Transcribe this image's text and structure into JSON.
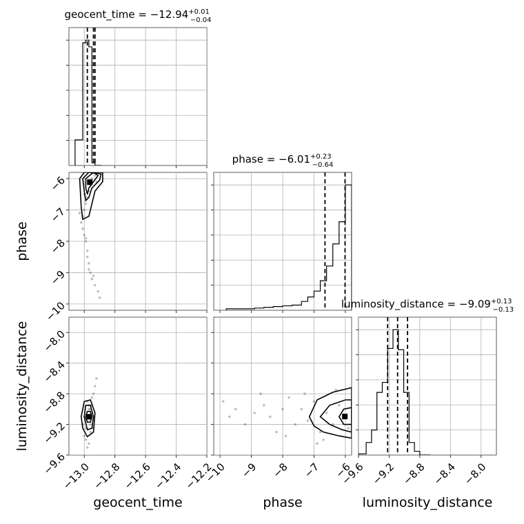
{
  "chart_data": {
    "type": "corner",
    "parameters": [
      "geocent_time",
      "phase",
      "luminosity_distance"
    ],
    "axes": {
      "geocent_time": {
        "label": "geocent_time",
        "range": [
          -13.1,
          -12.2
        ],
        "ticks": [
          -13.0,
          -12.8,
          -12.6,
          -12.4,
          -12.2
        ],
        "tick_labels": [
          "−13.0",
          "−12.8",
          "−12.6",
          "−12.4",
          "−12.2"
        ]
      },
      "phase": {
        "label": "phase",
        "range": [
          -10.2,
          -5.8
        ],
        "ticks": [
          -10,
          -9,
          -8,
          -7,
          -6
        ],
        "tick_labels": [
          "−10",
          "−9",
          "−8",
          "−7",
          "−6"
        ]
      },
      "luminosity_distance": {
        "label": "luminosity_distance",
        "range": [
          -9.6,
          -7.8
        ],
        "ticks": [
          -9.6,
          -9.2,
          -8.8,
          -8.4,
          -8.0
        ],
        "tick_labels": [
          "−9.6",
          "−9.2",
          "−8.8",
          "−8.4",
          "−8.0"
        ]
      }
    },
    "titles": [
      {
        "param": "geocent_time",
        "text": "geocent_time = −12.94",
        "plus": "+0.01",
        "minus": "−0.04"
      },
      {
        "param": "phase",
        "text": "phase = −6.01",
        "plus": "+0.23",
        "minus": "−0.64"
      },
      {
        "param": "luminosity_distance",
        "text": "luminosity_distance = −9.09",
        "plus": "+0.13",
        "minus": "−0.13"
      }
    ],
    "histograms": {
      "geocent_time": {
        "bin_edges": [
          -13.06,
          -13.01,
          -12.99,
          -12.97,
          -12.95,
          -12.93,
          -12.91,
          -12.89
        ],
        "counts": [
          0.19,
          0.91,
          0.93,
          0.88,
          0.02,
          0.0,
          0.0
        ],
        "quantiles": [
          -12.98,
          -12.94,
          -12.93
        ]
      },
      "phase": {
        "bin_edges": [
          -9.8,
          -9.5,
          -9.2,
          -8.9,
          -8.6,
          -8.3,
          -8.0,
          -7.7,
          -7.4,
          -7.2,
          -7.0,
          -6.8,
          -6.6,
          -6.4,
          -6.2,
          -6.0,
          -5.8
        ],
        "counts": [
          0.01,
          0.01,
          0.01,
          0.015,
          0.02,
          0.025,
          0.03,
          0.035,
          0.06,
          0.09,
          0.13,
          0.2,
          0.3,
          0.45,
          0.6,
          0.85
        ],
        "quantiles": [
          -6.65,
          -6.01,
          -5.78
        ]
      },
      "luminosity_distance": {
        "bin_edges": [
          -9.6,
          -9.5,
          -9.43,
          -9.36,
          -9.29,
          -9.22,
          -9.15,
          -9.08,
          -9.01,
          -8.94,
          -8.87,
          -8.8,
          -8.73,
          -8.66
        ],
        "counts": [
          0.01,
          0.1,
          0.2,
          0.5,
          0.58,
          0.85,
          1.0,
          0.84,
          0.5,
          0.1,
          0.03,
          0.0,
          0.0
        ],
        "quantiles": [
          -9.22,
          -9.09,
          -8.96
        ]
      }
    },
    "pairs": [
      {
        "x": "geocent_time",
        "y": "phase",
        "points": [
          [
            -12.95,
            -6.0
          ],
          [
            -12.96,
            -6.2
          ],
          [
            -12.97,
            -6.4
          ],
          [
            -12.98,
            -6.6
          ],
          [
            -12.99,
            -6.8
          ],
          [
            -13.0,
            -7.0
          ],
          [
            -13.01,
            -7.2
          ],
          [
            -13.02,
            -7.4
          ],
          [
            -13.01,
            -7.6
          ],
          [
            -13.0,
            -7.8
          ],
          [
            -12.99,
            -8.0
          ],
          [
            -12.98,
            -8.3
          ],
          [
            -12.98,
            -8.5
          ],
          [
            -12.97,
            -8.7
          ],
          [
            -12.96,
            -9.0
          ],
          [
            -12.95,
            -9.2
          ],
          [
            -12.93,
            -9.4
          ],
          [
            -12.91,
            -9.6
          ],
          [
            -12.93,
            -5.9
          ],
          [
            -12.92,
            -6.1
          ],
          [
            -13.0,
            -6.5
          ],
          [
            -13.03,
            -7.1
          ],
          [
            -12.99,
            -7.9
          ],
          [
            -12.97,
            -8.9
          ],
          [
            -12.94,
            -9.1
          ],
          [
            -12.9,
            -9.8
          ]
        ],
        "contours": [
          [
            [
              -12.99,
              -6.0
            ],
            [
              -12.94,
              -5.8
            ],
            [
              -12.91,
              -5.9
            ],
            [
              -12.94,
              -6.1
            ],
            [
              -12.97,
              -6.3
            ],
            [
              -12.98,
              -6.5
            ],
            [
              -12.99,
              -6.3
            ],
            [
              -12.99,
              -6.0
            ]
          ],
          [
            [
              -13.01,
              -6.0
            ],
            [
              -12.97,
              -5.8
            ],
            [
              -12.89,
              -5.85
            ],
            [
              -12.9,
              -6.05
            ],
            [
              -12.95,
              -6.3
            ],
            [
              -12.97,
              -6.6
            ],
            [
              -12.99,
              -6.7
            ],
            [
              -13.0,
              -6.4
            ],
            [
              -13.01,
              -6.0
            ]
          ],
          [
            [
              -13.03,
              -6.0
            ],
            [
              -13.0,
              -5.8
            ],
            [
              -12.88,
              -5.8
            ],
            [
              -12.88,
              -6.1
            ],
            [
              -12.93,
              -6.4
            ],
            [
              -12.95,
              -6.8
            ],
            [
              -12.97,
              -7.2
            ],
            [
              -13.01,
              -7.3
            ],
            [
              -13.02,
              -6.9
            ],
            [
              -13.03,
              -6.0
            ]
          ]
        ]
      },
      {
        "x": "geocent_time",
        "y": "luminosity_distance",
        "points": [
          [
            -12.98,
            -9.1
          ],
          [
            -12.97,
            -9.0
          ],
          [
            -12.96,
            -9.2
          ],
          [
            -12.99,
            -9.25
          ],
          [
            -12.95,
            -8.95
          ],
          [
            -13.0,
            -9.1
          ],
          [
            -12.96,
            -9.3
          ],
          [
            -12.98,
            -8.9
          ],
          [
            -12.95,
            -8.85
          ],
          [
            -12.94,
            -8.8
          ],
          [
            -12.93,
            -8.7
          ],
          [
            -12.92,
            -8.6
          ],
          [
            -13.0,
            -9.35
          ],
          [
            -12.99,
            -9.4
          ],
          [
            -12.97,
            -9.45
          ],
          [
            -12.96,
            -9.0
          ],
          [
            -13.01,
            -9.2
          ],
          [
            -12.94,
            -9.25
          ],
          [
            -12.98,
            -9.5
          ],
          [
            -12.97,
            -8.95
          ]
        ],
        "contours": [
          [
            [
              -12.99,
              -9.1
            ],
            [
              -12.98,
              -9.03
            ],
            [
              -12.96,
              -9.03
            ],
            [
              -12.95,
              -9.1
            ],
            [
              -12.96,
              -9.17
            ],
            [
              -12.98,
              -9.17
            ],
            [
              -12.99,
              -9.1
            ]
          ],
          [
            [
              -13.0,
              -9.1
            ],
            [
              -12.99,
              -8.95
            ],
            [
              -12.96,
              -8.95
            ],
            [
              -12.94,
              -9.1
            ],
            [
              -12.95,
              -9.25
            ],
            [
              -12.98,
              -9.27
            ],
            [
              -13.0,
              -9.1
            ]
          ],
          [
            [
              -13.02,
              -9.1
            ],
            [
              -13.0,
              -8.9
            ],
            [
              -12.96,
              -8.88
            ],
            [
              -12.93,
              -9.05
            ],
            [
              -12.94,
              -9.3
            ],
            [
              -12.98,
              -9.36
            ],
            [
              -13.01,
              -9.25
            ],
            [
              -13.02,
              -9.1
            ]
          ]
        ]
      },
      {
        "x": "phase",
        "y": "luminosity_distance",
        "points": [
          [
            -9.9,
            -8.9
          ],
          [
            -9.5,
            -9.0
          ],
          [
            -9.2,
            -9.2
          ],
          [
            -8.9,
            -9.05
          ],
          [
            -8.6,
            -8.95
          ],
          [
            -8.4,
            -9.1
          ],
          [
            -8.2,
            -9.3
          ],
          [
            -8.0,
            -9.0
          ],
          [
            -7.8,
            -8.85
          ],
          [
            -7.6,
            -9.2
          ],
          [
            -7.4,
            -9.0
          ],
          [
            -7.2,
            -9.15
          ],
          [
            -7.0,
            -8.9
          ],
          [
            -6.8,
            -9.3
          ],
          [
            -6.6,
            -9.05
          ],
          [
            -6.4,
            -9.2
          ],
          [
            -6.2,
            -8.95
          ],
          [
            -6.0,
            -9.1
          ],
          [
            -5.9,
            -9.25
          ],
          [
            -6.3,
            -8.75
          ],
          [
            -6.7,
            -9.4
          ],
          [
            -7.9,
            -9.35
          ],
          [
            -8.7,
            -8.8
          ],
          [
            -9.7,
            -9.1
          ],
          [
            -7.3,
            -8.8
          ],
          [
            -6.9,
            -9.45
          ]
        ],
        "contours": [
          [
            [
              -6.2,
              -9.1
            ],
            [
              -6.05,
              -9.0
            ],
            [
              -5.8,
              -8.98
            ],
            [
              -5.8,
              -9.2
            ],
            [
              -6.05,
              -9.2
            ],
            [
              -6.2,
              -9.1
            ]
          ],
          [
            [
              -6.8,
              -9.1
            ],
            [
              -6.5,
              -8.95
            ],
            [
              -6.0,
              -8.88
            ],
            [
              -5.8,
              -8.88
            ],
            [
              -5.8,
              -9.3
            ],
            [
              -6.1,
              -9.27
            ],
            [
              -6.5,
              -9.2
            ],
            [
              -6.8,
              -9.1
            ]
          ],
          [
            [
              -7.15,
              -9.1
            ],
            [
              -6.9,
              -8.88
            ],
            [
              -6.4,
              -8.78
            ],
            [
              -5.8,
              -8.72
            ],
            [
              -5.8,
              -9.38
            ],
            [
              -6.2,
              -9.35
            ],
            [
              -6.7,
              -9.3
            ],
            [
              -7.0,
              -9.22
            ],
            [
              -7.15,
              -9.1
            ]
          ]
        ]
      }
    ]
  }
}
